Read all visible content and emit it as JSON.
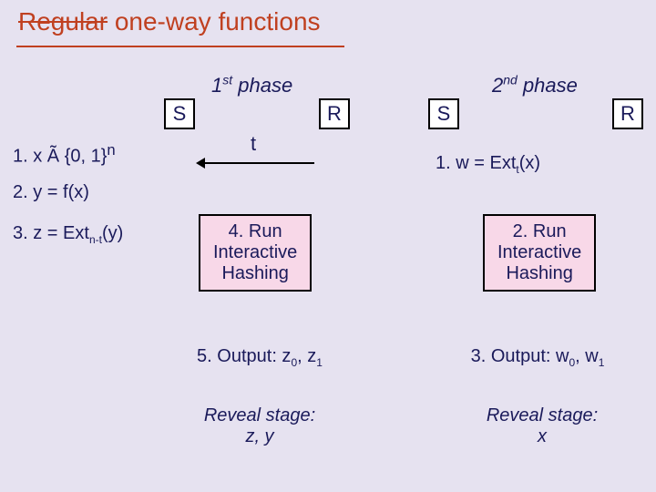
{
  "title_struck": "Regular",
  "title_rest": " one-way functions",
  "title_fontsize": 28,
  "title_color": "#c04020",
  "underline_color": "#c04020",
  "body_color": "#1a1a5a",
  "background_color": "#e6e2f0",
  "box_bg": "#ffffff",
  "runbox_bg": "#f8d8e8",
  "border_color": "#000000",
  "phase1": {
    "label_html": "1<sup>st</sup> phase",
    "S": "S",
    "R": "R",
    "steps": [
      "1. x Ã {0, 1}",
      "2. y = f(x)",
      "3. z = Ext"
    ],
    "step1_sup": "n",
    "step3_sub": "n-t",
    "step3_tail": "(y)",
    "t": "t",
    "run_lines": [
      "4. Run",
      "Interactive",
      "Hashing"
    ],
    "output_html": "5. Output: z<sub>0</sub>, z<sub>1</sub>",
    "reveal_lines": [
      "Reveal stage:",
      "z, y"
    ]
  },
  "phase2": {
    "label_html": "2<sup>nd</sup> phase",
    "S": "S",
    "R": "R",
    "step1_html": "1. w = Ext<sub>t</sub>(x)",
    "run_lines": [
      "2. Run",
      "Interactive",
      "Hashing"
    ],
    "output_html": "3. Output: w<sub>0</sub>, w<sub>1</sub>",
    "reveal_lines": [
      "Reveal stage:",
      "x"
    ]
  }
}
